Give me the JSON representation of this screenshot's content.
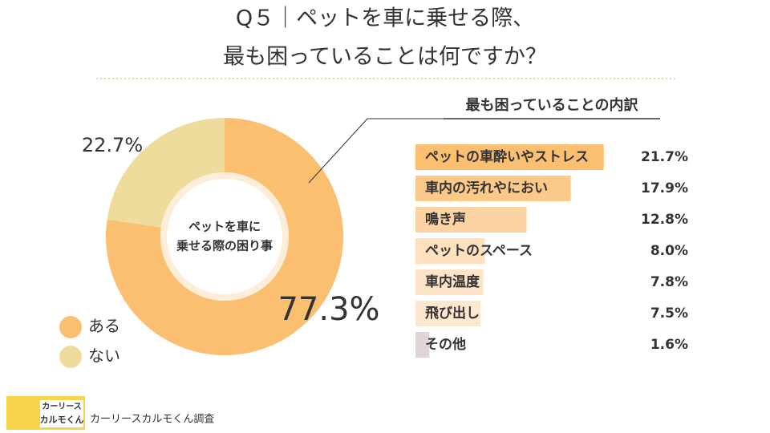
{
  "title": [
    "Q５｜ペットを車に乗せる際、",
    "最も困っていることは何ですか？"
  ],
  "logo": [
    "カーリース",
    "カルモくん"
  ],
  "source": "カーリースカルモくん調査",
  "chart_data": [
    {
      "type": "donut",
      "center_label": [
        "ペットを車に",
        "乗せる際の困り事"
      ],
      "categories": [
        "ある",
        "ない"
      ],
      "values": [
        77.3,
        22.7
      ],
      "value_labels": [
        "77.3%",
        "22.7%"
      ],
      "colors": [
        "#fbbf72",
        "#eedc9c"
      ],
      "legend": "bottom-left"
    },
    {
      "type": "hbar",
      "title": "最も困っていることの内訳",
      "categories": [
        "ペットの車酔いやストレス",
        "車内の汚れやにおい",
        "鳴き声",
        "ペットのスペース",
        "車内温度",
        "飛び出し",
        "その他"
      ],
      "values": [
        21.7,
        17.9,
        12.8,
        8.0,
        7.8,
        7.5,
        1.6
      ],
      "value_labels": [
        "21.7%",
        "17.9%",
        "12.8%",
        "8.0%",
        "7.8%",
        "7.5%",
        "1.6%"
      ],
      "colors": [
        "#fbbf72",
        "#fbc98a",
        "#fcd3a2",
        "#fde0bd",
        "#fde4c6",
        "#fde8cf",
        "#ddd6d4"
      ],
      "xlim": [
        0,
        22
      ]
    }
  ]
}
